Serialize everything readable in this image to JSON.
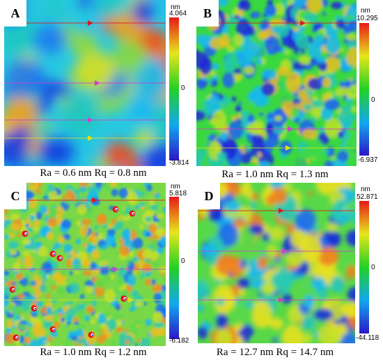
{
  "colors": {
    "low": "#2a17c8",
    "mid": "#23d024",
    "high": "#e81818"
  },
  "panels": [
    {
      "letter": "A",
      "unit": "nm",
      "max": "4.064",
      "zero": "0",
      "min": "-3.814",
      "caption": "Ra = 0.6 nm Rq = 0.8 nm",
      "texture": "smooth-blobs"
    },
    {
      "letter": "B",
      "unit": "nm",
      "max": "10.295",
      "zero": "0",
      "min": "-6.937",
      "caption": "Ra = 1.0 nm Rq = 1.3 nm",
      "texture": "fine-streaks"
    },
    {
      "letter": "C",
      "unit": "nm",
      "max": "5.818",
      "zero": "0",
      "min": "-6.182",
      "caption": "Ra = 1.0 nm Rq = 1.2 nm",
      "texture": "fine-speckle-with-pits"
    },
    {
      "letter": "D",
      "unit": "nm",
      "max": "52.871",
      "zero": "0",
      "min": "-44.118",
      "caption": "Ra = 12.7 nm Rq = 14.7 nm",
      "texture": "coarse-islands"
    }
  ]
}
